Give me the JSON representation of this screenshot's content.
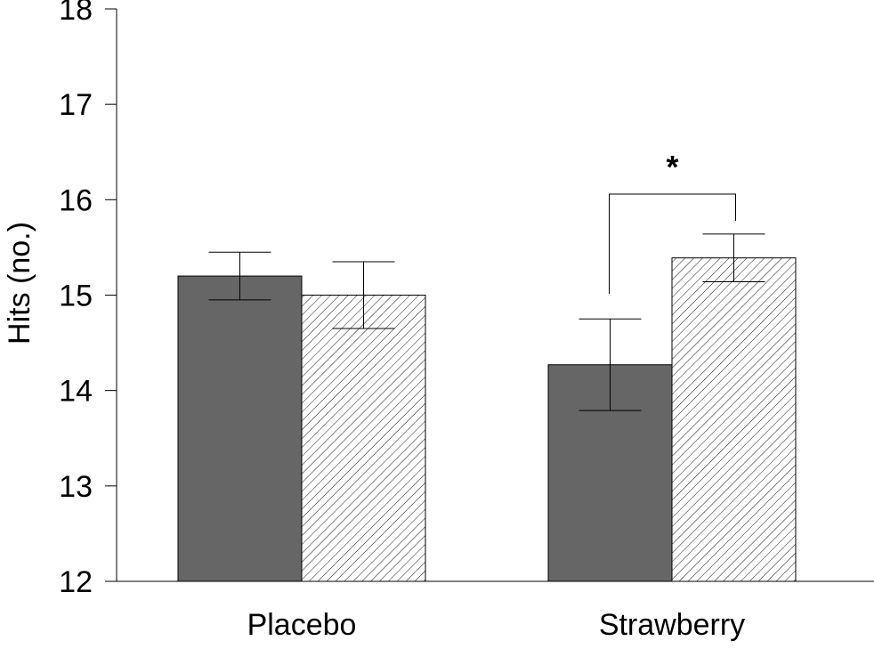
{
  "chart_data": {
    "type": "bar",
    "title": "",
    "xlabel": "",
    "ylabel": "Hits (no.)",
    "ylim": [
      12,
      18
    ],
    "yticks": [
      "12",
      "13",
      "14",
      "15",
      "16",
      "17",
      "18"
    ],
    "categories": [
      "Placebo",
      "Strawberry"
    ],
    "grid": false,
    "legend": "none",
    "series": [
      {
        "fill": "solid",
        "color": "#666666",
        "values": [
          15.2,
          14.27
        ],
        "errors": [
          0.25,
          0.48
        ]
      },
      {
        "fill": "hatched",
        "color": "#ffffff",
        "values": [
          15.0,
          15.39
        ],
        "errors": [
          0.35,
          0.25
        ]
      }
    ],
    "annotations": [
      {
        "category": "Strawberry",
        "label": "*"
      }
    ]
  }
}
